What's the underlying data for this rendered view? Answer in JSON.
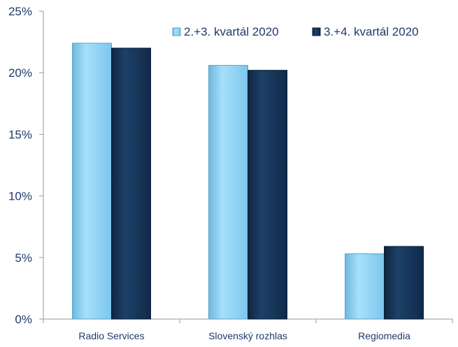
{
  "chart_data": {
    "type": "bar",
    "categories": [
      "Radio Services",
      "Slovenský rozhlas",
      "Regiomedia"
    ],
    "series": [
      {
        "name": "2.+3. kvartál 2020",
        "values": [
          22.4,
          20.6,
          5.3
        ],
        "color": "#8fd3f4"
      },
      {
        "name": "3.+4. kvartál 2020",
        "values": [
          22.0,
          20.2,
          5.9
        ],
        "color": "#1a3a5c"
      }
    ],
    "y_ticks": [
      "0%",
      "5%",
      "10%",
      "15%",
      "20%",
      "25%"
    ],
    "ylim": [
      0,
      25
    ],
    "grid": false,
    "legend_position": "top-right"
  }
}
